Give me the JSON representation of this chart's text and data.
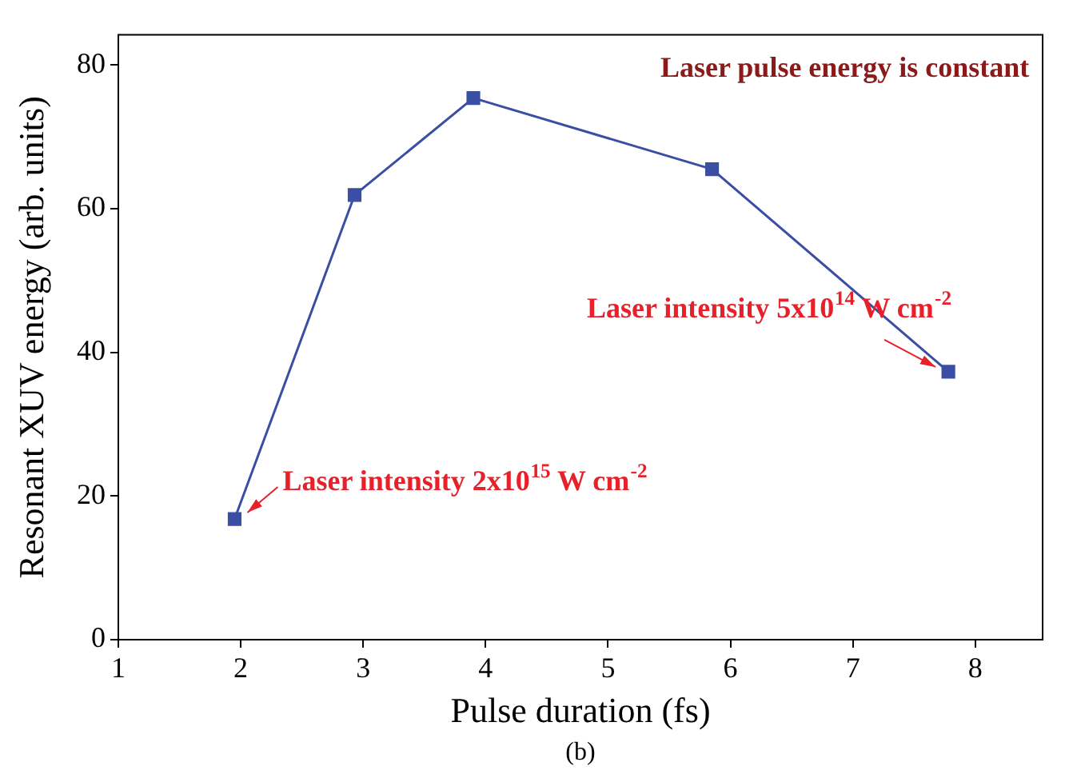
{
  "chart_data": {
    "type": "line",
    "xlabel": "Pulse duration (fs)",
    "ylabel": "Resonant XUV energy (arb. units)",
    "xlim": [
      1,
      8.55
    ],
    "xticks": [
      1,
      2,
      3,
      4,
      5,
      6,
      7,
      8
    ],
    "ylim": [
      0,
      84.2
    ],
    "yticks": [
      0,
      20,
      40,
      60,
      80
    ],
    "series": [
      {
        "color": "#3a4ea3",
        "x": [
          1.95,
          2.93,
          3.9,
          5.85,
          7.78
        ],
        "values": [
          16.8,
          61.9,
          75.4,
          65.5,
          37.3
        ]
      }
    ],
    "marker": "square",
    "line_style": "solid",
    "grid": false,
    "legend": false,
    "annotations": [
      "Laser pulse energy is constant",
      {
        "text": "Laser intensity 2x10$^{15}$ W cm$^{-2}$",
        "x": 1.95,
        "y": 16.8
      },
      {
        "text": "Laser intensity 5x10$^{14}$ W cm$^{-2}$",
        "x": 7.78,
        "y": 37.3
      },
      "(b)"
    ]
  }
}
